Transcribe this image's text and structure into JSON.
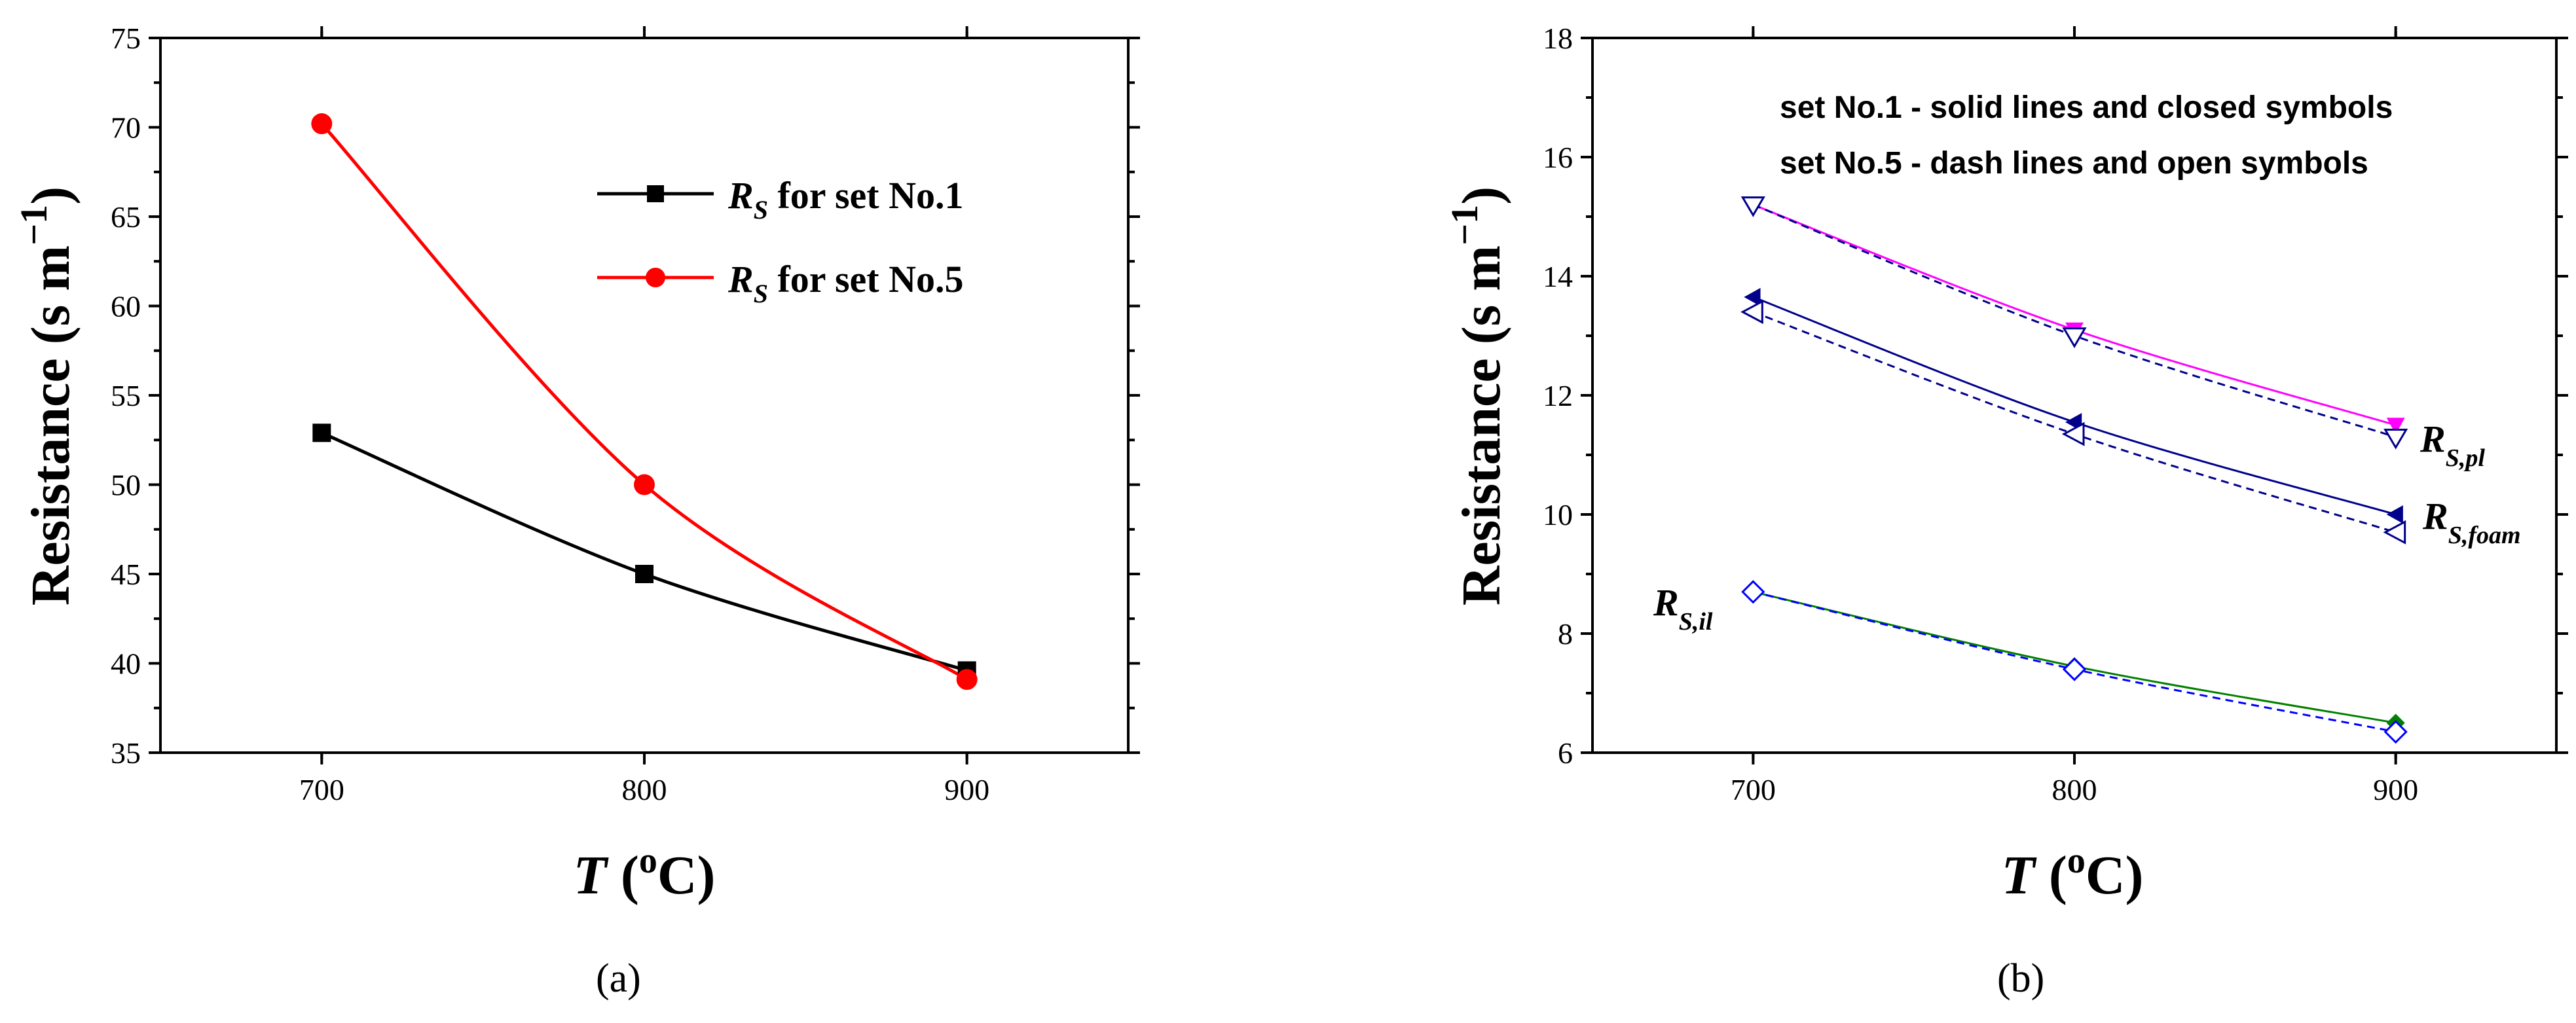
{
  "chart_data": [
    {
      "id": "a",
      "type": "line",
      "caption": "(a)",
      "xlabel_var": "T",
      "xlabel_unit": " (oC)",
      "ylabel": "Resistance (s m−1)",
      "xlim": [
        650,
        950
      ],
      "ylim": [
        35,
        75
      ],
      "xticks": [
        700,
        800,
        900
      ],
      "yticks": [
        35,
        40,
        45,
        50,
        55,
        60,
        65,
        70,
        75
      ],
      "x": [
        700,
        800,
        900
      ],
      "series": [
        {
          "name": "RS for set No.1",
          "legend_var": "R",
          "legend_sub": "S",
          "legend_text": " for set No.1",
          "color": "#000000",
          "marker": "square",
          "dash": "solid",
          "values": [
            52.9,
            45.0,
            39.6
          ]
        },
        {
          "name": "RS for set No.5",
          "legend_var": "R",
          "legend_sub": "S",
          "legend_text": " for set No.5",
          "color": "#ff0000",
          "marker": "circle",
          "dash": "solid",
          "values": [
            70.2,
            50.0,
            39.1
          ]
        }
      ]
    },
    {
      "id": "b",
      "type": "line",
      "caption": "(b)",
      "xlabel_var": "T",
      "xlabel_unit": " (oC)",
      "ylabel": "Resistance (s m−1)",
      "xlim": [
        650,
        950
      ],
      "ylim": [
        6,
        18
      ],
      "xticks": [
        700,
        800,
        900
      ],
      "yticks": [
        6,
        8,
        10,
        12,
        14,
        16,
        18
      ],
      "notes": [
        "set No.1 - solid lines and closed symbols",
        "set No.5 - dash lines and open symbols"
      ],
      "x": [
        700,
        800,
        900
      ],
      "curve_labels": [
        {
          "main": "R",
          "sub": "S,pl"
        },
        {
          "main": "R",
          "sub": "S,foam"
        },
        {
          "main": "R",
          "sub": "S,il"
        }
      ],
      "series": [
        {
          "name": "RS,pl set No.1",
          "color": "#ff00ff",
          "marker": "tri-down-filled",
          "dash": "solid",
          "values": [
            15.2,
            13.1,
            11.5
          ]
        },
        {
          "name": "RS,pl set No.5",
          "color": "#00008b",
          "marker": "tri-down-open",
          "dash": "dash",
          "values": [
            15.2,
            13.0,
            11.3
          ]
        },
        {
          "name": "RS,foam set No.1",
          "color": "#00008b",
          "marker": "tri-left-filled",
          "dash": "solid",
          "values": [
            13.65,
            11.55,
            10.0
          ]
        },
        {
          "name": "RS,foam set No.5",
          "color": "#00008b",
          "marker": "tri-left-open",
          "dash": "dash",
          "values": [
            13.4,
            11.35,
            9.7
          ]
        },
        {
          "name": "RS,il set No.1",
          "color": "#008000",
          "marker": "diamond-filled",
          "dash": "solid",
          "values": [
            8.7,
            7.45,
            6.5
          ]
        },
        {
          "name": "RS,il set No.5",
          "color": "#0000ff",
          "marker": "diamond-open",
          "dash": "dash",
          "values": [
            8.7,
            7.4,
            6.35
          ]
        }
      ]
    }
  ]
}
